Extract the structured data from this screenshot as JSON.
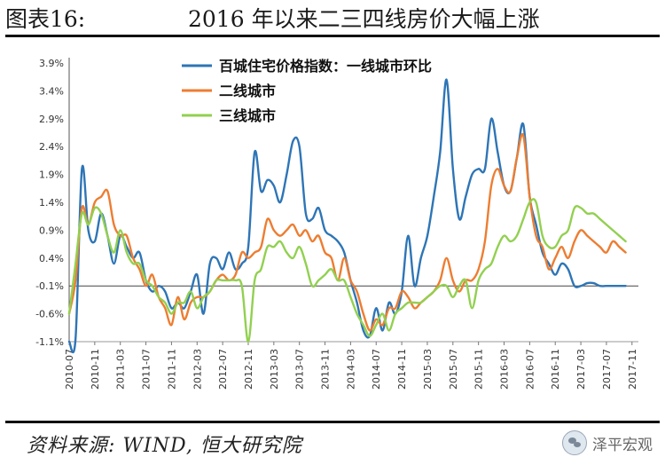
{
  "figure": {
    "label": "图表16:",
    "title": "2016 年以来二三四线房价大幅上涨",
    "source": "资料来源: WIND, 恒大研究院",
    "brand": "泽平宏观",
    "brand_logo_icon": "wechat-icon"
  },
  "chart_data": {
    "type": "line",
    "title": "",
    "xlabel": "",
    "ylabel": "",
    "ylim": [
      -1.1,
      3.9
    ],
    "y_ticks": [
      "-1.1%",
      "-0.6%",
      "-0.1%",
      "0.4%",
      "0.9%",
      "1.4%",
      "1.9%",
      "2.4%",
      "2.9%",
      "3.4%",
      "3.9%"
    ],
    "y_tick_values": [
      -1.1,
      -0.6,
      -0.1,
      0.4,
      0.9,
      1.4,
      1.9,
      2.4,
      2.9,
      3.4,
      3.9
    ],
    "x_start": "2010-07",
    "x_end": "2017-12",
    "x_ticks": [
      "2010-07",
      "2010-11",
      "2011-03",
      "2011-07",
      "2011-11",
      "2012-03",
      "2012-07",
      "2012-11",
      "2013-03",
      "2013-07",
      "2013-11",
      "2014-03",
      "2014-07",
      "2014-11",
      "2015-03",
      "2015-07",
      "2015-11",
      "2016-03",
      "2016-07",
      "2016-11",
      "2017-03",
      "2017-07",
      "2017-11"
    ],
    "legend_position": "top-center",
    "grid": false,
    "series": [
      {
        "name": "百城住宅价格指数：一线城市环比",
        "color": "#2e75b6",
        "points": [
          [
            "2010-07",
            -1.1
          ],
          [
            "2010-08",
            -1.05
          ],
          [
            "2010-09",
            2.0
          ],
          [
            "2010-10",
            0.9
          ],
          [
            "2010-11",
            0.7
          ],
          [
            "2010-12",
            1.2
          ],
          [
            "2011-01",
            0.8
          ],
          [
            "2011-02",
            0.3
          ],
          [
            "2011-03",
            0.8
          ],
          [
            "2011-04",
            0.6
          ],
          [
            "2011-05",
            0.4
          ],
          [
            "2011-06",
            0.5
          ],
          [
            "2011-07",
            0.0
          ],
          [
            "2011-08",
            -0.2
          ],
          [
            "2011-09",
            -0.1
          ],
          [
            "2011-10",
            -0.2
          ],
          [
            "2011-11",
            -0.5
          ],
          [
            "2011-12",
            -0.4
          ],
          [
            "2012-01",
            -0.5
          ],
          [
            "2012-02",
            -0.2
          ],
          [
            "2012-03",
            0.1
          ],
          [
            "2012-04",
            -0.6
          ],
          [
            "2012-05",
            0.3
          ],
          [
            "2012-06",
            0.4
          ],
          [
            "2012-07",
            0.2
          ],
          [
            "2012-08",
            0.5
          ],
          [
            "2012-09",
            0.2
          ],
          [
            "2012-10",
            0.3
          ],
          [
            "2012-11",
            0.6
          ],
          [
            "2012-12",
            2.3
          ],
          [
            "2013-01",
            1.6
          ],
          [
            "2013-02",
            1.8
          ],
          [
            "2013-03",
            1.7
          ],
          [
            "2013-04",
            1.4
          ],
          [
            "2013-05",
            1.9
          ],
          [
            "2013-06",
            2.5
          ],
          [
            "2013-07",
            2.4
          ],
          [
            "2013-08",
            1.2
          ],
          [
            "2013-09",
            1.1
          ],
          [
            "2013-10",
            1.3
          ],
          [
            "2013-11",
            0.9
          ],
          [
            "2013-12",
            0.8
          ],
          [
            "2014-01",
            0.7
          ],
          [
            "2014-02",
            0.5
          ],
          [
            "2014-03",
            0.0
          ],
          [
            "2014-04",
            -0.4
          ],
          [
            "2014-05",
            -0.9
          ],
          [
            "2014-06",
            -1.0
          ],
          [
            "2014-07",
            -0.5
          ],
          [
            "2014-08",
            -0.9
          ],
          [
            "2014-09",
            -0.4
          ],
          [
            "2014-10",
            -0.6
          ],
          [
            "2014-11",
            -0.2
          ],
          [
            "2014-12",
            0.8
          ],
          [
            "2015-01",
            -0.1
          ],
          [
            "2015-02",
            0.4
          ],
          [
            "2015-03",
            0.8
          ],
          [
            "2015-04",
            1.5
          ],
          [
            "2015-05",
            2.3
          ],
          [
            "2015-06",
            3.6
          ],
          [
            "2015-07",
            2.0
          ],
          [
            "2015-08",
            1.1
          ],
          [
            "2015-09",
            1.5
          ],
          [
            "2015-10",
            1.9
          ],
          [
            "2015-11",
            2.0
          ],
          [
            "2015-12",
            2.0
          ],
          [
            "2016-01",
            2.9
          ],
          [
            "2016-02",
            2.3
          ],
          [
            "2016-03",
            1.7
          ],
          [
            "2016-04",
            1.6
          ],
          [
            "2016-05",
            2.2
          ],
          [
            "2016-06",
            2.8
          ],
          [
            "2016-07",
            1.5
          ],
          [
            "2016-08",
            1.0
          ],
          [
            "2016-09",
            0.5
          ],
          [
            "2016-10",
            0.3
          ],
          [
            "2016-11",
            0.1
          ],
          [
            "2016-12",
            0.3
          ],
          [
            "2017-01",
            0.2
          ],
          [
            "2017-02",
            -0.1
          ],
          [
            "2017-03",
            -0.1
          ],
          [
            "2017-04",
            -0.05
          ],
          [
            "2017-05",
            -0.05
          ],
          [
            "2017-06",
            -0.1
          ],
          [
            "2017-07",
            -0.1
          ],
          [
            "2017-08",
            -0.1
          ],
          [
            "2017-09",
            -0.1
          ],
          [
            "2017-10",
            -0.1
          ]
        ]
      },
      {
        "name": "二线城市",
        "color": "#ed7d31",
        "points": [
          [
            "2010-07",
            -0.6
          ],
          [
            "2010-08",
            0.0
          ],
          [
            "2010-09",
            1.3
          ],
          [
            "2010-10",
            1.0
          ],
          [
            "2010-11",
            1.4
          ],
          [
            "2010-12",
            1.5
          ],
          [
            "2011-01",
            1.6
          ],
          [
            "2011-02",
            1.0
          ],
          [
            "2011-03",
            0.8
          ],
          [
            "2011-04",
            0.8
          ],
          [
            "2011-05",
            0.4
          ],
          [
            "2011-06",
            0.2
          ],
          [
            "2011-07",
            -0.1
          ],
          [
            "2011-08",
            0.1
          ],
          [
            "2011-09",
            -0.3
          ],
          [
            "2011-10",
            -0.5
          ],
          [
            "2011-11",
            -0.8
          ],
          [
            "2011-12",
            -0.3
          ],
          [
            "2012-01",
            -0.7
          ],
          [
            "2012-02",
            -0.4
          ],
          [
            "2012-03",
            -0.3
          ],
          [
            "2012-04",
            -0.3
          ],
          [
            "2012-05",
            -0.2
          ],
          [
            "2012-06",
            0.0
          ],
          [
            "2012-07",
            0.1
          ],
          [
            "2012-08",
            0.0
          ],
          [
            "2012-09",
            0.1
          ],
          [
            "2012-10",
            0.5
          ],
          [
            "2012-11",
            0.4
          ],
          [
            "2012-12",
            0.5
          ],
          [
            "2013-01",
            0.6
          ],
          [
            "2013-02",
            1.1
          ],
          [
            "2013-03",
            0.9
          ],
          [
            "2013-04",
            0.8
          ],
          [
            "2013-05",
            0.9
          ],
          [
            "2013-06",
            1.0
          ],
          [
            "2013-07",
            0.8
          ],
          [
            "2013-08",
            0.9
          ],
          [
            "2013-09",
            0.7
          ],
          [
            "2013-10",
            0.8
          ],
          [
            "2013-11",
            0.5
          ],
          [
            "2013-12",
            0.4
          ],
          [
            "2014-01",
            0.0
          ],
          [
            "2014-02",
            0.4
          ],
          [
            "2014-03",
            0.0
          ],
          [
            "2014-04",
            -0.2
          ],
          [
            "2014-05",
            -0.6
          ],
          [
            "2014-06",
            -0.9
          ],
          [
            "2014-07",
            -0.7
          ],
          [
            "2014-08",
            -0.8
          ],
          [
            "2014-09",
            -0.5
          ],
          [
            "2014-10",
            -0.5
          ],
          [
            "2014-11",
            -0.2
          ],
          [
            "2014-12",
            -0.3
          ],
          [
            "2015-01",
            -0.5
          ],
          [
            "2015-02",
            -0.4
          ],
          [
            "2015-03",
            -0.3
          ],
          [
            "2015-04",
            -0.2
          ],
          [
            "2015-05",
            0.0
          ],
          [
            "2015-06",
            0.4
          ],
          [
            "2015-07",
            0.0
          ],
          [
            "2015-08",
            -0.2
          ],
          [
            "2015-09",
            0.0
          ],
          [
            "2015-10",
            0.0
          ],
          [
            "2015-11",
            0.2
          ],
          [
            "2015-12",
            0.7
          ],
          [
            "2016-01",
            1.7
          ],
          [
            "2016-02",
            2.0
          ],
          [
            "2016-03",
            1.7
          ],
          [
            "2016-04",
            1.6
          ],
          [
            "2016-05",
            2.2
          ],
          [
            "2016-06",
            2.6
          ],
          [
            "2016-07",
            1.5
          ],
          [
            "2016-08",
            0.8
          ],
          [
            "2016-09",
            0.6
          ],
          [
            "2016-10",
            0.2
          ],
          [
            "2016-11",
            0.4
          ],
          [
            "2016-12",
            0.6
          ],
          [
            "2017-01",
            0.4
          ],
          [
            "2017-02",
            0.7
          ],
          [
            "2017-03",
            0.9
          ],
          [
            "2017-04",
            0.8
          ],
          [
            "2017-05",
            0.7
          ],
          [
            "2017-06",
            0.6
          ],
          [
            "2017-07",
            0.5
          ],
          [
            "2017-08",
            0.7
          ],
          [
            "2017-09",
            0.6
          ],
          [
            "2017-10",
            0.5
          ]
        ]
      },
      {
        "name": "三线城市",
        "color": "#92d050",
        "points": [
          [
            "2010-07",
            -0.6
          ],
          [
            "2010-08",
            0.3
          ],
          [
            "2010-09",
            1.2
          ],
          [
            "2010-10",
            1.0
          ],
          [
            "2010-11",
            1.3
          ],
          [
            "2010-12",
            1.2
          ],
          [
            "2011-01",
            0.8
          ],
          [
            "2011-02",
            0.5
          ],
          [
            "2011-03",
            0.9
          ],
          [
            "2011-04",
            0.5
          ],
          [
            "2011-05",
            0.3
          ],
          [
            "2011-06",
            0.3
          ],
          [
            "2011-07",
            0.0
          ],
          [
            "2011-08",
            -0.1
          ],
          [
            "2011-09",
            -0.3
          ],
          [
            "2011-10",
            -0.4
          ],
          [
            "2011-11",
            -0.6
          ],
          [
            "2011-12",
            -0.4
          ],
          [
            "2012-01",
            -0.4
          ],
          [
            "2012-02",
            -0.2
          ],
          [
            "2012-03",
            -0.5
          ],
          [
            "2012-04",
            -0.3
          ],
          [
            "2012-05",
            -0.2
          ],
          [
            "2012-06",
            0.0
          ],
          [
            "2012-07",
            0.0
          ],
          [
            "2012-08",
            0.0
          ],
          [
            "2012-09",
            0.0
          ],
          [
            "2012-10",
            -0.1
          ],
          [
            "2012-11",
            -1.1
          ],
          [
            "2012-12",
            0.0
          ],
          [
            "2013-01",
            0.2
          ],
          [
            "2013-02",
            0.6
          ],
          [
            "2013-03",
            0.6
          ],
          [
            "2013-04",
            0.7
          ],
          [
            "2013-05",
            0.5
          ],
          [
            "2013-06",
            0.4
          ],
          [
            "2013-07",
            0.6
          ],
          [
            "2013-08",
            0.3
          ],
          [
            "2013-09",
            -0.1
          ],
          [
            "2013-10",
            0.0
          ],
          [
            "2013-11",
            0.1
          ],
          [
            "2013-12",
            0.2
          ],
          [
            "2014-01",
            0.0
          ],
          [
            "2014-02",
            0.0
          ],
          [
            "2014-03",
            -0.3
          ],
          [
            "2014-04",
            -0.6
          ],
          [
            "2014-05",
            -0.8
          ],
          [
            "2014-06",
            -1.0
          ],
          [
            "2014-07",
            -0.8
          ],
          [
            "2014-08",
            -0.6
          ],
          [
            "2014-09",
            -0.9
          ],
          [
            "2014-10",
            -0.6
          ],
          [
            "2014-11",
            -0.5
          ],
          [
            "2014-12",
            -0.4
          ],
          [
            "2015-01",
            -0.4
          ],
          [
            "2015-02",
            -0.4
          ],
          [
            "2015-03",
            -0.3
          ],
          [
            "2015-04",
            -0.2
          ],
          [
            "2015-05",
            -0.1
          ],
          [
            "2015-06",
            -0.1
          ],
          [
            "2015-07",
            -0.3
          ],
          [
            "2015-08",
            -0.1
          ],
          [
            "2015-09",
            0.0
          ],
          [
            "2015-10",
            -0.5
          ],
          [
            "2015-11",
            0.0
          ],
          [
            "2015-12",
            0.2
          ],
          [
            "2016-01",
            0.3
          ],
          [
            "2016-02",
            0.6
          ],
          [
            "2016-03",
            0.8
          ],
          [
            "2016-04",
            0.7
          ],
          [
            "2016-05",
            0.8
          ],
          [
            "2016-06",
            1.1
          ],
          [
            "2016-07",
            1.4
          ],
          [
            "2016-08",
            1.4
          ],
          [
            "2016-09",
            0.8
          ],
          [
            "2016-10",
            0.6
          ],
          [
            "2016-11",
            0.6
          ],
          [
            "2016-12",
            0.8
          ],
          [
            "2017-01",
            0.9
          ],
          [
            "2017-02",
            1.3
          ],
          [
            "2017-03",
            1.3
          ],
          [
            "2017-04",
            1.2
          ],
          [
            "2017-05",
            1.2
          ],
          [
            "2017-06",
            1.1
          ],
          [
            "2017-07",
            1.0
          ],
          [
            "2017-08",
            0.9
          ],
          [
            "2017-09",
            0.8
          ],
          [
            "2017-10",
            0.7
          ]
        ]
      }
    ]
  }
}
